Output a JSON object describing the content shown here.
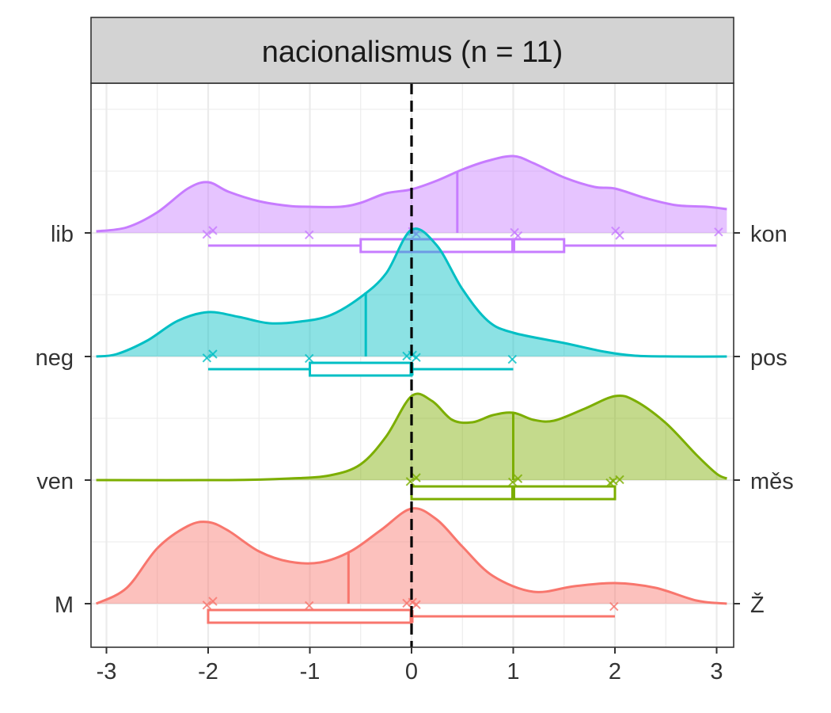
{
  "chart_data": {
    "type": "ridgeline",
    "title": "nacionalismus (n = 11)",
    "xlabel": "",
    "ylabel": "",
    "xlim": [
      -3.1,
      3.1
    ],
    "x_ticks": [
      -3,
      -2,
      -1,
      0,
      1,
      2,
      3
    ],
    "x_tick_labels": [
      "-3",
      "-2",
      "-1",
      "0",
      "1",
      "2",
      "3"
    ],
    "reference_line": {
      "x": 0,
      "style": "dashed",
      "color": "#000000"
    },
    "grid": true,
    "legend": "none",
    "rows": [
      {
        "left_label": "lib",
        "right_label": "kon",
        "color": "#C77CFF",
        "mean": 0.45,
        "median": 1,
        "box": {
          "min": -2,
          "q1": -0.5,
          "median": 1,
          "q3": 1.5,
          "max": 3
        },
        "points": [
          -2,
          -2,
          -1,
          0,
          0,
          1,
          1,
          2,
          2,
          3
        ],
        "density": [
          [
            -3.1,
            0.02
          ],
          [
            -2.8,
            0.07
          ],
          [
            -2.5,
            0.26
          ],
          [
            -2.2,
            0.56
          ],
          [
            -2.0,
            0.64
          ],
          [
            -1.8,
            0.52
          ],
          [
            -1.5,
            0.4
          ],
          [
            -1.2,
            0.34
          ],
          [
            -1.0,
            0.33
          ],
          [
            -0.7,
            0.33
          ],
          [
            -0.5,
            0.38
          ],
          [
            -0.25,
            0.5
          ],
          [
            0.0,
            0.55
          ],
          [
            0.25,
            0.66
          ],
          [
            0.5,
            0.8
          ],
          [
            0.75,
            0.91
          ],
          [
            1.0,
            0.97
          ],
          [
            1.2,
            0.88
          ],
          [
            1.5,
            0.7
          ],
          [
            1.8,
            0.58
          ],
          [
            2.0,
            0.56
          ],
          [
            2.3,
            0.44
          ],
          [
            2.6,
            0.35
          ],
          [
            2.9,
            0.33
          ],
          [
            3.1,
            0.3
          ]
        ]
      },
      {
        "left_label": "neg",
        "right_label": "pos",
        "color": "#00BFC4",
        "mean": -0.45,
        "median": 0,
        "box": {
          "min": -2,
          "q1": -1,
          "median": 0,
          "q3": 0,
          "max": 1
        },
        "points": [
          -2,
          -2,
          -1,
          0,
          0,
          0,
          1
        ],
        "density": [
          [
            -3.1,
            0.0
          ],
          [
            -2.9,
            0.03
          ],
          [
            -2.6,
            0.2
          ],
          [
            -2.3,
            0.45
          ],
          [
            -2.0,
            0.56
          ],
          [
            -1.7,
            0.5
          ],
          [
            -1.4,
            0.42
          ],
          [
            -1.1,
            0.44
          ],
          [
            -0.8,
            0.52
          ],
          [
            -0.5,
            0.75
          ],
          [
            -0.25,
            1.05
          ],
          [
            0.0,
            1.6
          ],
          [
            0.25,
            1.4
          ],
          [
            0.5,
            0.85
          ],
          [
            0.75,
            0.45
          ],
          [
            1.0,
            0.3
          ],
          [
            1.5,
            0.17
          ],
          [
            1.9,
            0.06
          ],
          [
            2.2,
            0.01
          ],
          [
            2.6,
            0.0
          ],
          [
            3.1,
            0.0
          ]
        ]
      },
      {
        "left_label": "ven",
        "right_label": "měs",
        "color": "#7CAE00",
        "mean": 1,
        "median": 1,
        "box": {
          "min": 0,
          "q1": 0,
          "median": 1,
          "q3": 2,
          "max": 2
        },
        "points": [
          0,
          0,
          1,
          1,
          2,
          2,
          2
        ],
        "density": [
          [
            -3.1,
            0.0
          ],
          [
            -1.8,
            0.0
          ],
          [
            -1.2,
            0.02
          ],
          [
            -0.8,
            0.06
          ],
          [
            -0.5,
            0.2
          ],
          [
            -0.25,
            0.55
          ],
          [
            0.0,
            1.06
          ],
          [
            0.2,
            1.0
          ],
          [
            0.4,
            0.76
          ],
          [
            0.6,
            0.73
          ],
          [
            0.8,
            0.82
          ],
          [
            1.0,
            0.85
          ],
          [
            1.2,
            0.76
          ],
          [
            1.4,
            0.75
          ],
          [
            1.7,
            0.9
          ],
          [
            2.0,
            1.06
          ],
          [
            2.2,
            1.0
          ],
          [
            2.5,
            0.72
          ],
          [
            2.8,
            0.32
          ],
          [
            3.0,
            0.08
          ],
          [
            3.1,
            0.02
          ]
        ]
      },
      {
        "left_label": "M",
        "right_label": "Ž",
        "color": "#F8766D",
        "mean": -0.62,
        "median": 0,
        "box": {
          "min": -2,
          "q1": -2,
          "median": 0,
          "q3": 0,
          "max": 2
        },
        "points": [
          -2,
          -2,
          -1,
          0,
          0,
          0,
          2
        ],
        "density": [
          [
            -3.1,
            0.0
          ],
          [
            -2.8,
            0.2
          ],
          [
            -2.5,
            0.7
          ],
          [
            -2.2,
            0.98
          ],
          [
            -2.0,
            1.03
          ],
          [
            -1.8,
            0.92
          ],
          [
            -1.5,
            0.66
          ],
          [
            -1.2,
            0.53
          ],
          [
            -0.9,
            0.52
          ],
          [
            -0.6,
            0.66
          ],
          [
            -0.3,
            0.93
          ],
          [
            0.0,
            1.2
          ],
          [
            0.25,
            1.06
          ],
          [
            0.5,
            0.72
          ],
          [
            0.8,
            0.35
          ],
          [
            1.2,
            0.15
          ],
          [
            1.6,
            0.22
          ],
          [
            2.0,
            0.26
          ],
          [
            2.4,
            0.2
          ],
          [
            2.8,
            0.04
          ],
          [
            3.1,
            0.0
          ]
        ]
      }
    ]
  }
}
